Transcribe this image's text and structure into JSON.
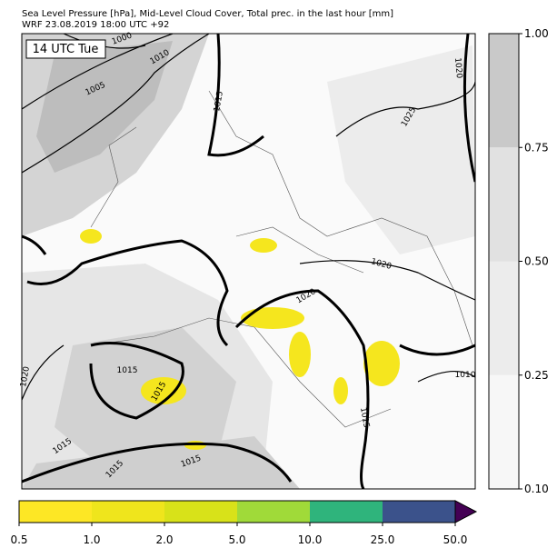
{
  "header": {
    "title": "Sea Level Pressure [hPa], Mid-Level Cloud Cover, Total prec. in the last hour [mm]",
    "subtitle": "WRF 23.08.2019 18:00 UTC +92"
  },
  "map": {
    "time_label": "14 UTC Tue",
    "contour_labels": [
      "1000",
      "1010",
      "1005",
      "1015",
      "1020",
      "1025",
      "1020",
      "1020",
      "1020",
      "1020",
      "1015",
      "1015",
      "1015",
      "1015",
      "1015",
      "1010",
      "1015",
      "1015"
    ]
  },
  "cloud_colorbar": {
    "ticks": [
      "0.10",
      "0.25",
      "0.50",
      "0.75",
      "1.00"
    ],
    "colors": [
      "#f7f7f7",
      "#ececec",
      "#e1e1e1",
      "#c9c9c9"
    ]
  },
  "precip_colorbar": {
    "ticks": [
      "0.5",
      "1.0",
      "2.0",
      "5.0",
      "10.0",
      "25.0",
      "50.0"
    ],
    "colors": [
      "#fde725",
      "#efe51c",
      "#d8e219",
      "#a0da39",
      "#2fb47c",
      "#3b528b"
    ],
    "extend_color": "#440154"
  }
}
